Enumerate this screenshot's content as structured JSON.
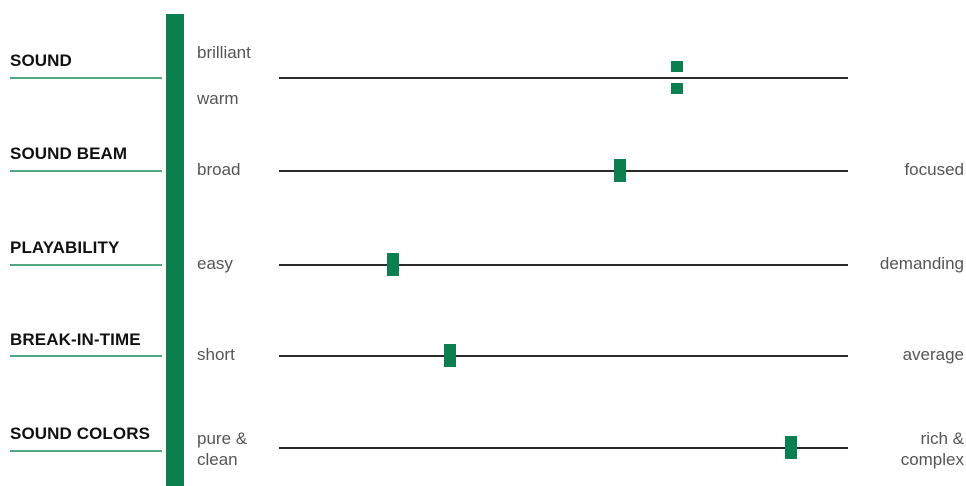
{
  "colors": {
    "accent": "#0b7f4f",
    "underline": "#4fa882",
    "scale_line": "#2b2b2b"
  },
  "chart_data": {
    "type": "slider-scale",
    "scale_range": [
      0,
      1
    ],
    "rows": [
      {
        "title": "SOUND",
        "left_label": "brilliant",
        "right_label": "warm",
        "left_label_position": "above-line",
        "right_label_position": "below-line",
        "split_marker": true,
        "value": 0.7
      },
      {
        "title": "SOUND BEAM",
        "left_label": "broad",
        "right_label": "focused",
        "value": 0.6
      },
      {
        "title": "PLAYABILITY",
        "left_label": "easy",
        "right_label": "demanding",
        "value": 0.2
      },
      {
        "title": "BREAK-IN-TIME",
        "left_label": "short",
        "right_label": "average",
        "value": 0.3
      },
      {
        "title": "SOUND COLORS",
        "left_label": "pure &\nclean",
        "right_label": "rich &\ncomplex",
        "value": 0.9
      }
    ]
  }
}
